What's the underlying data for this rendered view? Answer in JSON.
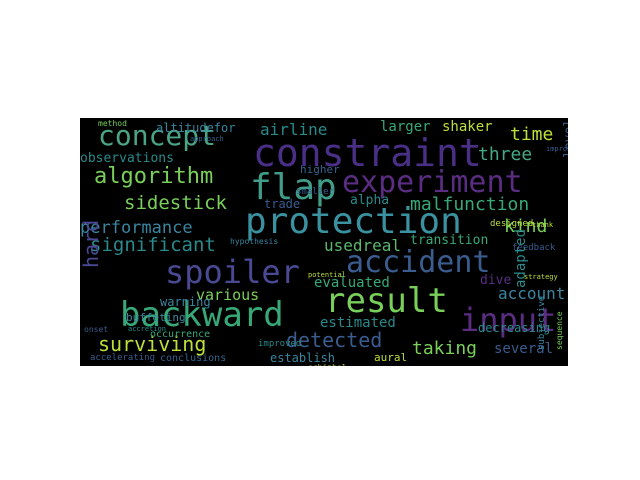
{
  "palette": {
    "background": "#000000",
    "page": "#ffffff",
    "purple": "#5a2d82",
    "indigo": "#453583",
    "blue": "#3a5c8e",
    "steel": "#33638d",
    "teal": "#2a8a8b",
    "green": "#38a878",
    "lime": "#79cf5a",
    "yellow": "#bddf3a"
  },
  "words": {
    "constraint": "constraint",
    "concept": "concept",
    "experiment": "experiment",
    "flap": "flap",
    "protection": "protection",
    "accident": "accident",
    "spoiler": "spoiler",
    "backward": "backward",
    "result": "result",
    "input": "input",
    "algorithm": "algorithm",
    "performance": "performance",
    "surviving": "surviving",
    "detected": "detected",
    "significant": "significant",
    "sidestick": "sidestick",
    "malfunction": "malfunction",
    "airline": "airline",
    "three": "three",
    "time": "time",
    "shaker": "shaker",
    "larger": "larger",
    "kind": "kind",
    "account": "account",
    "taking": "taking",
    "several": "several",
    "adapted": "adapted",
    "transition": "transition",
    "usedreal": "usedreal",
    "hard": "hard",
    "various": "various",
    "estimated": "estimated",
    "evaluated": "evaluated",
    "observations": "observations",
    "altitudefor": "altitudefor",
    "alpha": "alpha",
    "trade": "trade",
    "level": "level",
    "warning": "warning",
    "buffeting": "buffeting",
    "establish": "establish",
    "aural": "aural",
    "higher": "higher",
    "dive": "dive",
    "decreasing": "decreasing",
    "occurrence": "occurrence",
    "conclusions": "conclusions",
    "accelerating": "accelerating",
    "improved": "improved",
    "subjective": "subjective",
    "designed": "designed",
    "smaller": "smaller",
    "method": "method",
    "schiphol": "schiphol",
    "sequence": "sequence",
    "hypothesis": "hypothesis",
    "onset": "onset",
    "potential": "potential",
    "feedback": "feedback",
    "strategy": "strategy",
    "approach": "approach",
    "thank": "thank",
    "accretion": "accretion",
    "improbable": "improbable"
  }
}
